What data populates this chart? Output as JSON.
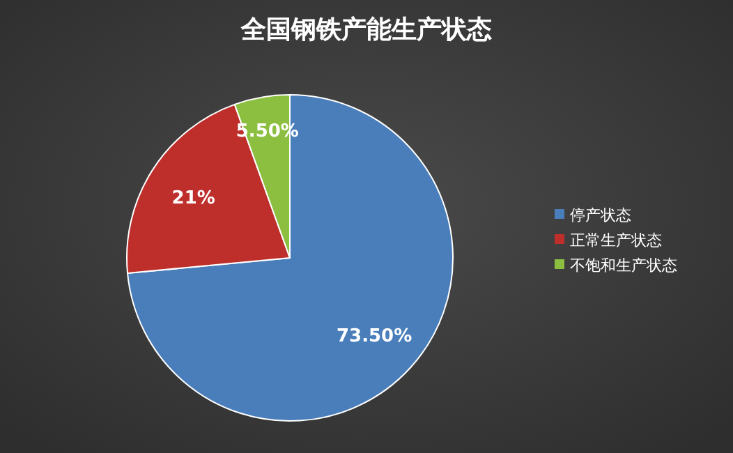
{
  "chart_data": {
    "type": "pie",
    "title": "全国钢铁产能生产状态",
    "categories": [
      "停产状态",
      "正常生产状态",
      "不饱和生产状态"
    ],
    "values": [
      73.5,
      21,
      5.5
    ],
    "colors": [
      "#4a7ebb",
      "#be2f2c",
      "#8cbf3f"
    ],
    "value_labels": [
      "73.50%",
      "21%",
      "5.50%"
    ],
    "legend": "right"
  }
}
